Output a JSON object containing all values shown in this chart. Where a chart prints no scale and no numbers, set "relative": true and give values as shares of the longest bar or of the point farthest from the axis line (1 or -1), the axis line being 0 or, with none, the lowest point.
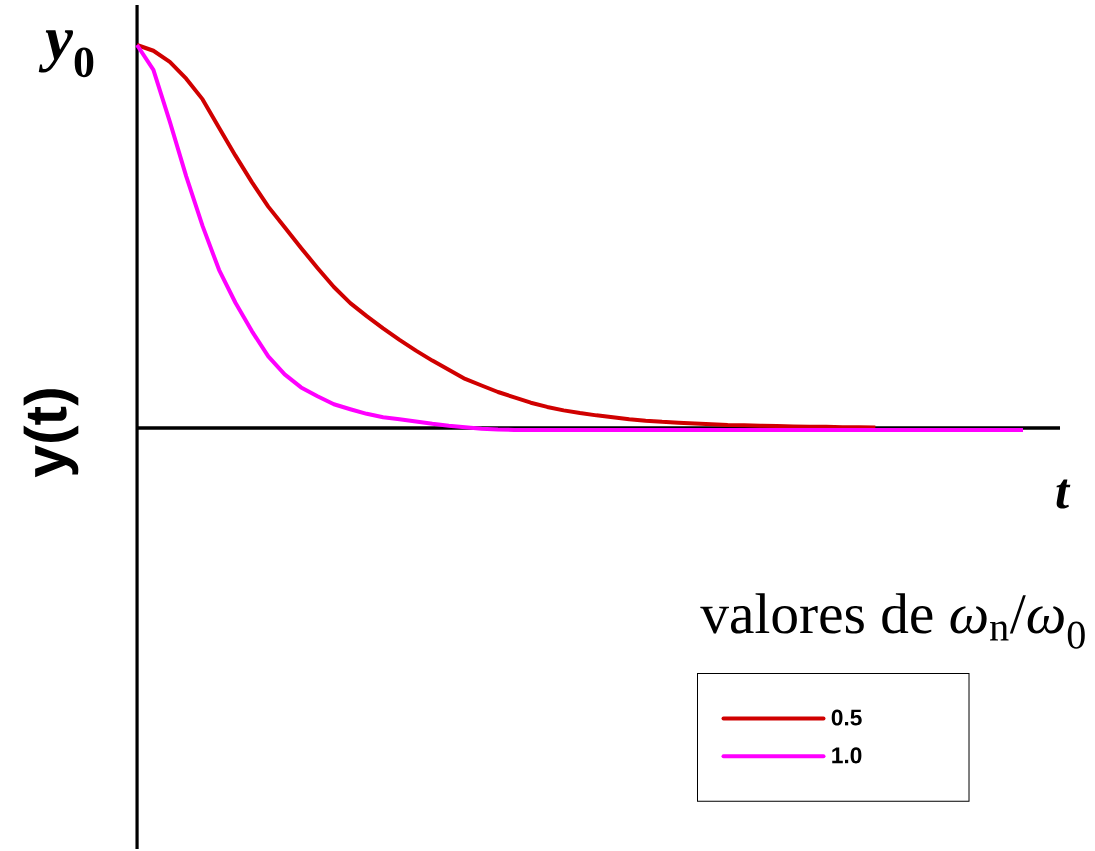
{
  "chart_data": {
    "type": "line",
    "relative": true,
    "xlabel": "t",
    "ylabel": "y(t)",
    "legend_title": "valores de *ω*$_{n}$/*ω*$_{0}$",
    "legend": "bottom right",
    "annotations": [
      "*y*$_{0}$"
    ],
    "categories": [
      null,
      null,
      null,
      null,
      null,
      null,
      null,
      null,
      null,
      null,
      null,
      null,
      null,
      null,
      null,
      null,
      null,
      null,
      null,
      null,
      null,
      null,
      null,
      null,
      null,
      null,
      null,
      null,
      null,
      null,
      null,
      null,
      null,
      null,
      null,
      null,
      null,
      null,
      null,
      null,
      null,
      null,
      null,
      null,
      null,
      null,
      null,
      null,
      null,
      null,
      null,
      null,
      null,
      null,
      null
    ],
    "series": [
      {
        "name": "0.5",
        "color": "#d00000",
        "values": [
          1.0,
          0.985,
          0.956,
          0.912,
          0.858,
          0.784,
          0.711,
          0.642,
          0.578,
          0.524,
          0.47,
          0.418,
          0.368,
          0.326,
          0.292,
          0.26,
          0.23,
          0.202,
          0.176,
          0.152,
          0.128,
          0.111,
          0.094,
          0.08,
          0.066,
          0.055,
          0.046,
          0.039,
          0.033,
          0.028,
          0.023,
          0.019,
          0.016,
          0.014,
          0.012,
          0.01,
          0.008,
          0.007,
          0.006,
          0.005,
          0.004,
          0.003,
          0.003,
          0.002,
          0.002,
          0.001,
          null,
          null,
          null,
          null,
          null,
          null,
          null,
          null,
          null
        ]
      },
      {
        "name": "1.0",
        "color": "#ff00ff",
        "values": [
          1.0,
          0.935,
          0.8,
          0.657,
          0.527,
          0.413,
          0.327,
          0.253,
          0.187,
          0.14,
          0.106,
          0.083,
          0.062,
          0.049,
          0.037,
          0.028,
          0.023,
          0.017,
          0.011,
          0.006,
          0.002,
          -0.002,
          -0.004,
          -0.005,
          -0.005,
          -0.005,
          -0.005,
          -0.005,
          -0.005,
          -0.005,
          -0.005,
          -0.005,
          -0.005,
          -0.005,
          -0.005,
          -0.005,
          -0.005,
          -0.005,
          -0.005,
          -0.005,
          -0.005,
          -0.005,
          -0.005,
          -0.005,
          -0.005,
          -0.005,
          -0.005,
          -0.005,
          -0.005,
          -0.005,
          -0.005,
          -0.005,
          -0.005,
          -0.005,
          -0.005
        ]
      }
    ]
  }
}
